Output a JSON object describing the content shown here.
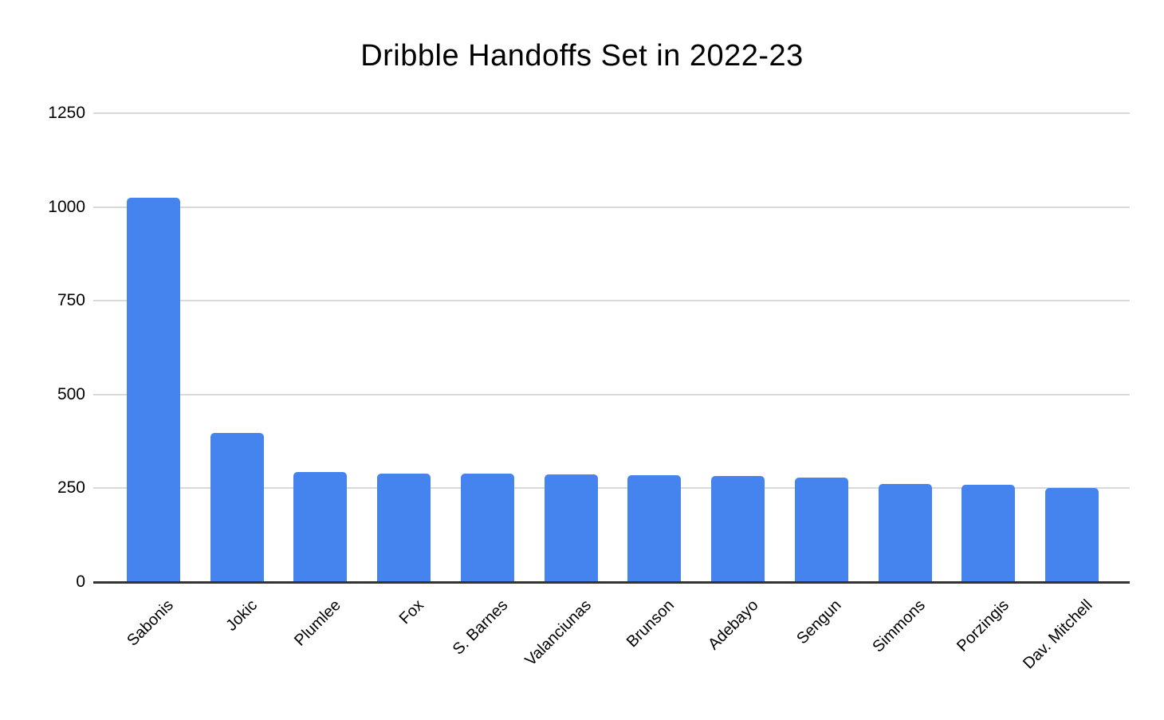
{
  "chart_data": {
    "type": "bar",
    "title": "Dribble Handoffs Set in 2022-23",
    "categories": [
      "Sabonis",
      "Jokic",
      "Plumlee",
      "Fox",
      "S. Barnes",
      "Valanciunas",
      "Brunson",
      "Adebayo",
      "Sengun",
      "Simmons",
      "Porzingis",
      "Dav. Mitchell"
    ],
    "values": [
      1025,
      397,
      293,
      290,
      289,
      287,
      284,
      282,
      278,
      262,
      260,
      252
    ],
    "ylim": [
      0,
      1250
    ],
    "y_ticks": [
      0,
      250,
      500,
      750,
      1000,
      1250
    ],
    "grid": true,
    "legend": false,
    "colors": {
      "bar": "#4583ee",
      "gridline": "#d9d9d9",
      "axis_line": "#333333",
      "text": "#000000"
    }
  }
}
